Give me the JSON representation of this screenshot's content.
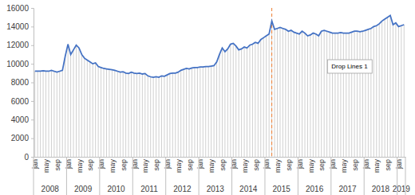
{
  "chart_data": {
    "type": "line",
    "color": "#4472c4",
    "ylim": [
      0,
      16000
    ],
    "yticks": [
      0,
      2000,
      4000,
      6000,
      8000,
      10000,
      12000,
      14000,
      16000
    ],
    "grid": false,
    "categories": [
      "jan",
      null,
      null,
      null,
      "may",
      null,
      null,
      null,
      "sep",
      null,
      null,
      null,
      "jan",
      null,
      null,
      null,
      "may",
      null,
      null,
      null,
      "sep",
      null,
      null,
      null,
      "jan",
      null,
      null,
      null,
      "may",
      null,
      null,
      null,
      "sep",
      null,
      null,
      null,
      "jan",
      null,
      null,
      null,
      "may",
      null,
      null,
      null,
      "sep",
      null,
      null,
      null,
      "jan",
      null,
      null,
      null,
      "may",
      null,
      null,
      null,
      "sep",
      null,
      null,
      null,
      "jan",
      null,
      null,
      null,
      "may",
      null,
      null,
      null,
      "sep",
      null,
      null,
      null,
      "jan",
      null,
      null,
      null,
      "may",
      null,
      null,
      null,
      "sep",
      null,
      null,
      null,
      "jan",
      null,
      null,
      null,
      "may",
      null,
      null,
      null,
      "sep",
      null,
      null,
      null,
      "jan",
      null,
      null,
      null,
      "may",
      null,
      null,
      null,
      "sep",
      null,
      null,
      null,
      "jan",
      null,
      null,
      null,
      "may",
      null,
      null,
      null,
      "sep",
      null,
      null,
      null,
      "jan",
      null,
      null,
      null,
      "may",
      null,
      null,
      null,
      "sep",
      null,
      null,
      null,
      "jan",
      null,
      null
    ],
    "category_groups": [
      {
        "label": "2008",
        "count": 12
      },
      {
        "label": "2009",
        "count": 12
      },
      {
        "label": "2010",
        "count": 12
      },
      {
        "label": "2011",
        "count": 12
      },
      {
        "label": "2012",
        "count": 12
      },
      {
        "label": "2013",
        "count": 12
      },
      {
        "label": "2014",
        "count": 12
      },
      {
        "label": "2015",
        "count": 12
      },
      {
        "label": "2016",
        "count": 12
      },
      {
        "label": "2017",
        "count": 12
      },
      {
        "label": "2018",
        "count": 12
      },
      {
        "label": "2019",
        "count": 3
      }
    ],
    "values": [
      9200,
      9200,
      9200,
      9250,
      9200,
      9200,
      9300,
      9200,
      9100,
      9200,
      9300,
      10800,
      12100,
      11000,
      11500,
      12000,
      11700,
      11000,
      10600,
      10400,
      10200,
      10000,
      10100,
      9700,
      9600,
      9500,
      9450,
      9400,
      9350,
      9300,
      9200,
      9100,
      9150,
      9000,
      8950,
      9100,
      9000,
      8950,
      9000,
      8900,
      8950,
      8700,
      8600,
      8550,
      8600,
      8550,
      8700,
      8650,
      8800,
      8950,
      9000,
      9000,
      9100,
      9300,
      9400,
      9500,
      9450,
      9550,
      9600,
      9600,
      9650,
      9650,
      9700,
      9700,
      9750,
      9800,
      10200,
      11000,
      11700,
      11300,
      11600,
      12100,
      12200,
      11900,
      11500,
      11600,
      11800,
      11700,
      12000,
      12100,
      12300,
      12200,
      12600,
      12800,
      13000,
      13200,
      14600,
      13700,
      13800,
      13900,
      13800,
      13700,
      13500,
      13600,
      13400,
      13300,
      13200,
      13500,
      13300,
      13000,
      13100,
      13300,
      13200,
      13000,
      13500,
      13600,
      13500,
      13400,
      13300,
      13300,
      13300,
      13350,
      13300,
      13300,
      13300,
      13400,
      13500,
      13500,
      13450,
      13500,
      13600,
      13700,
      13800,
      14000,
      14100,
      14300,
      14600,
      14800,
      15000,
      15200,
      14200,
      14400,
      14000,
      14100,
      14200
    ],
    "reference_line": {
      "at": 86,
      "color": "#ed7d31",
      "line_style": "dashed"
    },
    "annotations": [
      {
        "text": "Drop Lines 1"
      }
    ]
  }
}
